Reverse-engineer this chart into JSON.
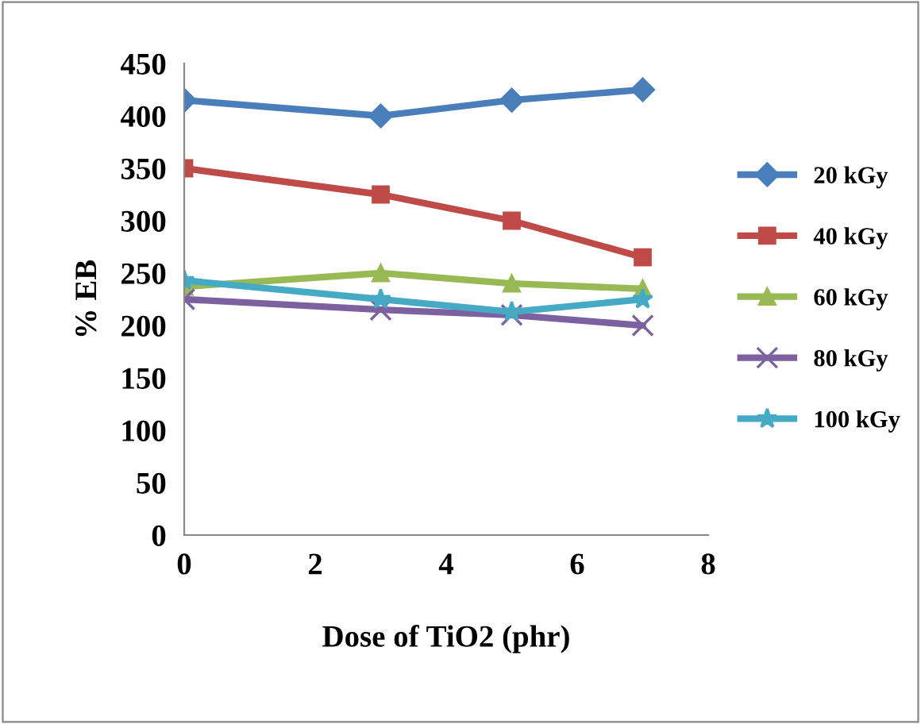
{
  "chart_data": {
    "type": "line",
    "xlabel": "Dose of TiO2 (phr)",
    "ylabel": "% EB",
    "x": [
      0,
      3,
      5,
      7
    ],
    "series": [
      {
        "name": "20 kGy",
        "color": "#4a7ebb",
        "marker": "diamond",
        "values": [
          415,
          400,
          415,
          425
        ]
      },
      {
        "name": "40 kGy",
        "color": "#be4b48",
        "marker": "square",
        "values": [
          350,
          325,
          300,
          265
        ]
      },
      {
        "name": "60 kGy",
        "color": "#98b954",
        "marker": "triangle",
        "values": [
          237,
          250,
          240,
          235
        ]
      },
      {
        "name": "80 kGy",
        "color": "#7d60a0",
        "marker": "cross",
        "values": [
          225,
          215,
          210,
          200
        ]
      },
      {
        "name": "100 kGy",
        "color": "#46aac5",
        "marker": "star",
        "values": [
          243,
          225,
          213,
          225
        ]
      }
    ],
    "xlim": [
      0,
      8
    ],
    "xticks": [
      0,
      2,
      4,
      6,
      8
    ],
    "ylim": [
      0,
      450
    ],
    "yticks": [
      0,
      50,
      100,
      150,
      200,
      250,
      300,
      350,
      400,
      450
    ],
    "grid": false,
    "legend": "right",
    "line_style": "solid"
  }
}
